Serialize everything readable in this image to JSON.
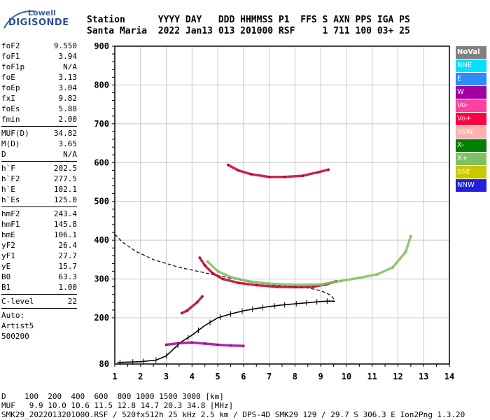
{
  "logo": {
    "line1": "Lowell",
    "line2": "DIGISONDE"
  },
  "header": {
    "labels_line": "Station      YYYY DAY   DDD HHMMSS P1  FFS S AXN PPS IGA PS",
    "values_line": "Santa Maria  2022 Jan13 013 201000 RSF     1 711 100 03+ 25"
  },
  "params": {
    "group1": [
      {
        "label": "foF2",
        "value": "9.550"
      },
      {
        "label": "foF1",
        "value": "3.94"
      },
      {
        "label": "foF1p",
        "value": "N/A"
      },
      {
        "label": "foE",
        "value": "3.13"
      },
      {
        "label": "foEp",
        "value": "3.04"
      },
      {
        "label": "fxI",
        "value": "9.82"
      },
      {
        "label": "foEs",
        "value": "5.88"
      },
      {
        "label": "fmin",
        "value": "2.00"
      }
    ],
    "group2": [
      {
        "label": "MUF(D)",
        "value": "34.82"
      },
      {
        "label": "M(D)",
        "value": "3.65"
      },
      {
        "label": "D",
        "value": "N/A"
      }
    ],
    "group3": [
      {
        "label": "h`F",
        "value": "202.5"
      },
      {
        "label": "h`F2",
        "value": "277.5"
      },
      {
        "label": "h`E",
        "value": "102.1"
      },
      {
        "label": "h`Es",
        "value": "125.0"
      }
    ],
    "group4": [
      {
        "label": "hmF2",
        "value": "243.4"
      },
      {
        "label": "hmF1",
        "value": "145.8"
      },
      {
        "label": "hmE",
        "value": "106.1"
      },
      {
        "label": "yF2",
        "value": "26.4"
      },
      {
        "label": "yF1",
        "value": "27.7"
      },
      {
        "label": "yE",
        "value": "15.7"
      },
      {
        "label": "B0",
        "value": "63.3"
      },
      {
        "label": "B1",
        "value": "1.00"
      }
    ],
    "group5": [
      {
        "label": "C-level",
        "value": "22"
      }
    ],
    "auto": [
      "Auto:",
      "Artist5",
      "500200"
    ]
  },
  "legend": [
    {
      "label": "NoVal",
      "color": "#808080"
    },
    {
      "label": "NNE",
      "color": "#00e0ff"
    },
    {
      "label": "E",
      "color": "#2a8cff"
    },
    {
      "label": "W",
      "color": "#a000a0"
    },
    {
      "label": "Vo-",
      "color": "#ff40a0"
    },
    {
      "label": "Vo+",
      "color": "#ff0040"
    },
    {
      "label": "SSW",
      "color": "#ffb0b0"
    },
    {
      "label": "X-",
      "color": "#008000"
    },
    {
      "label": "X+",
      "color": "#80c060"
    },
    {
      "label": "SSE",
      "color": "#c8c800"
    },
    {
      "label": "NNW",
      "color": "#2020e0"
    }
  ],
  "footer": {
    "d_line": "D    100  200  400  600  800 1000 1500 3000 [km]",
    "muf_line": "MUF   9.9 10.0 10.6 11.5 12.8 14.7 20.3 34.8 [MHz]",
    "file_line": "SMK29_2022013201000.RSF / 520fx512h 25 kHz 2.5 km / DPS-4D SMK29 129 / 29.7 S 306.3 E Ion2Png 1.3.20"
  },
  "chart_data": {
    "type": "scatter",
    "xlim": [
      1,
      14
    ],
    "ylim": [
      80,
      900
    ],
    "x_ticks": [
      1,
      2,
      3,
      4,
      5,
      6,
      7,
      8,
      9,
      10,
      11,
      12,
      13,
      14
    ],
    "y_ticks": [
      80,
      200,
      300,
      400,
      500,
      600,
      700,
      800,
      900
    ],
    "grid": true,
    "series": [
      {
        "kind": "true-height-profile",
        "color": "#000000",
        "points": [
          [
            1.1,
            84
          ],
          [
            2.0,
            86
          ],
          [
            2.6,
            90
          ],
          [
            3.0,
            101
          ],
          [
            3.3,
            120
          ],
          [
            3.6,
            138
          ],
          [
            4.0,
            155
          ],
          [
            4.5,
            180
          ],
          [
            5.0,
            200
          ],
          [
            5.5,
            210
          ],
          [
            6.0,
            218
          ],
          [
            6.5,
            224
          ],
          [
            7.0,
            229
          ],
          [
            7.5,
            233
          ],
          [
            8.0,
            236
          ],
          [
            8.5,
            239
          ],
          [
            9.0,
            242
          ],
          [
            9.3,
            243
          ],
          [
            9.55,
            243
          ]
        ]
      },
      {
        "kind": "model-profile-dashed",
        "color": "#000000",
        "points": [
          [
            1.0,
            415
          ],
          [
            1.3,
            395
          ],
          [
            1.8,
            372
          ],
          [
            2.5,
            350
          ],
          [
            3.5,
            330
          ],
          [
            4.5,
            316
          ],
          [
            5.5,
            302
          ],
          [
            6.5,
            290
          ],
          [
            7.5,
            282
          ],
          [
            8.5,
            277
          ],
          [
            9.0,
            270
          ],
          [
            9.4,
            258
          ],
          [
            9.55,
            245
          ]
        ]
      },
      {
        "kind": "o-trace-F",
        "color": "#c0002a",
        "points": [
          [
            4.3,
            355
          ],
          [
            4.5,
            335
          ],
          [
            4.8,
            315
          ],
          [
            5.2,
            300
          ],
          [
            5.8,
            290
          ],
          [
            6.5,
            284
          ],
          [
            7.3,
            280
          ],
          [
            8.0,
            279
          ],
          [
            8.7,
            280
          ],
          [
            9.2,
            286
          ],
          [
            9.6,
            294
          ]
        ]
      },
      {
        "kind": "x-trace-F",
        "color": "#80c060",
        "points": [
          [
            4.6,
            345
          ],
          [
            5.0,
            320
          ],
          [
            5.5,
            305
          ],
          [
            6.2,
            294
          ],
          [
            7.0,
            288
          ],
          [
            8.0,
            285
          ],
          [
            9.0,
            286
          ],
          [
            9.8,
            295
          ],
          [
            10.5,
            303
          ],
          [
            11.2,
            312
          ],
          [
            11.8,
            330
          ],
          [
            12.3,
            370
          ],
          [
            12.5,
            410
          ]
        ]
      },
      {
        "kind": "o-trace-F-multihop",
        "color": "#c0002a",
        "points": [
          [
            5.4,
            594
          ],
          [
            5.8,
            580
          ],
          [
            6.3,
            570
          ],
          [
            7.0,
            563
          ],
          [
            7.6,
            563
          ],
          [
            8.3,
            566
          ],
          [
            8.9,
            575
          ],
          [
            9.3,
            582
          ]
        ]
      },
      {
        "kind": "low-layer-traces",
        "color": "#a000a0",
        "points": [
          [
            3.0,
            130
          ],
          [
            3.5,
            134
          ],
          [
            4.0,
            136
          ],
          [
            4.5,
            133
          ],
          [
            5.0,
            130
          ],
          [
            5.5,
            128
          ],
          [
            6.0,
            127
          ]
        ]
      },
      {
        "kind": "E-trace",
        "color": "#c0002a",
        "points": [
          [
            3.6,
            212
          ],
          [
            3.8,
            218
          ],
          [
            4.2,
            240
          ],
          [
            4.4,
            255
          ]
        ]
      }
    ],
    "error_bar_x": [
      1.2,
      1.7,
      2.1,
      2.6,
      3.0,
      3.45,
      3.85,
      4.25,
      4.7,
      5.1,
      5.5,
      5.95,
      6.35,
      6.75,
      7.2,
      7.6,
      8.05,
      8.45,
      8.85,
      9.25
    ]
  }
}
